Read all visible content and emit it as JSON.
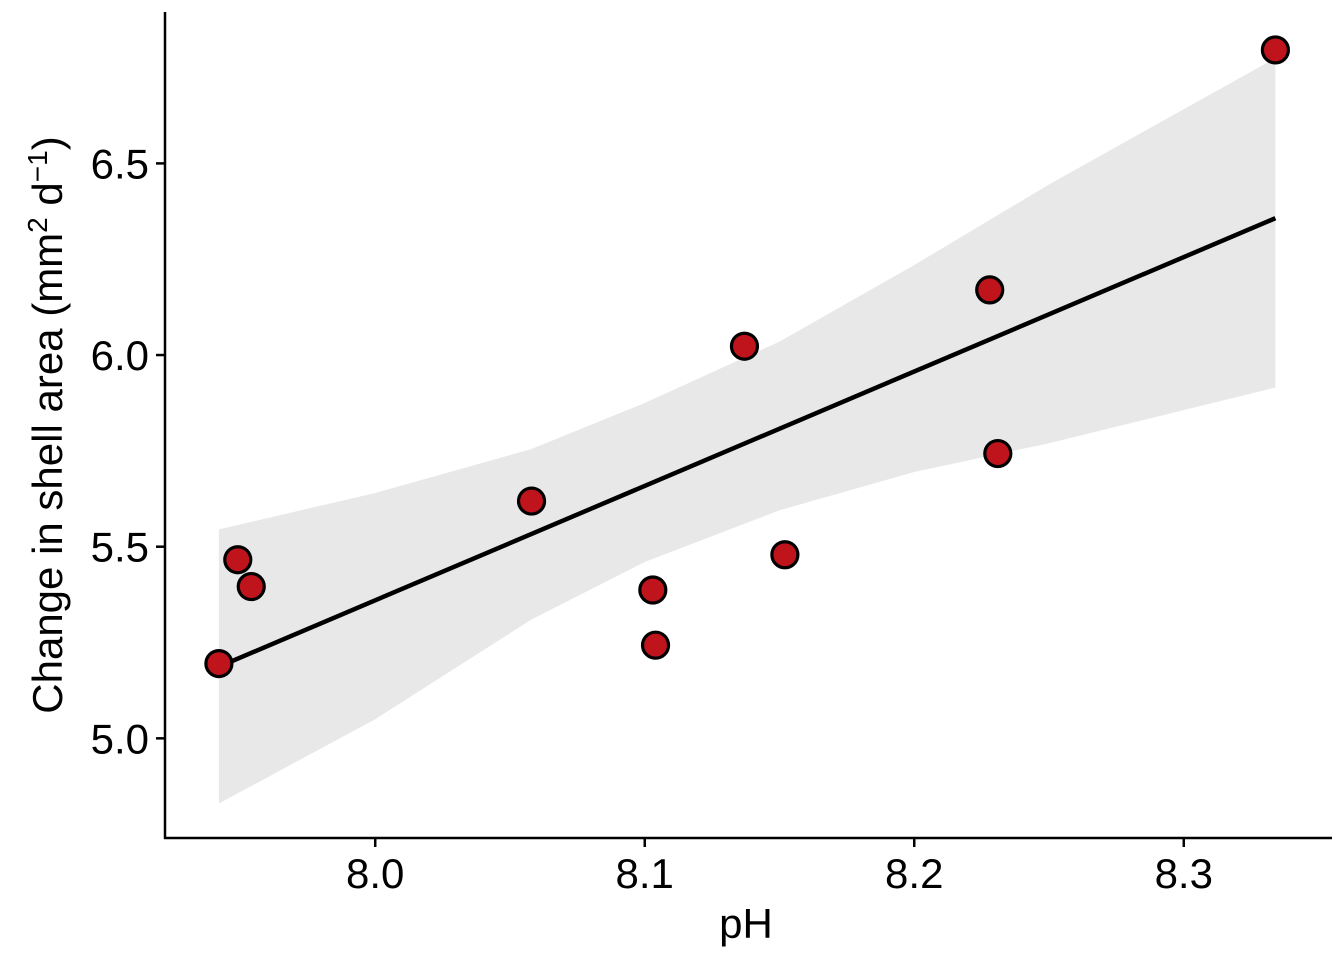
{
  "chart_data": {
    "type": "scatter",
    "title": "",
    "xlabel": "pH",
    "ylabel": {
      "text_main": "Change in shell area (mm",
      "sup1": "2",
      "text_mid": " d",
      "sup2": "−1",
      "text_end": ")"
    },
    "xlim": [
      7.922,
      8.355
    ],
    "ylim": [
      4.74,
      6.895
    ],
    "x_ticks": [
      8.0,
      8.1,
      8.2,
      8.3
    ],
    "x_tick_labels": [
      "8.0",
      "8.1",
      "8.2",
      "8.3"
    ],
    "y_ticks": [
      5.0,
      5.5,
      6.0,
      6.5
    ],
    "y_tick_labels": [
      "5.0",
      "5.5",
      "6.0",
      "6.5"
    ],
    "grid": false,
    "legend": "none",
    "points": [
      {
        "x": 7.942,
        "y": 5.195
      },
      {
        "x": 7.949,
        "y": 5.466
      },
      {
        "x": 7.954,
        "y": 5.396
      },
      {
        "x": 8.058,
        "y": 5.619
      },
      {
        "x": 8.103,
        "y": 5.387
      },
      {
        "x": 8.104,
        "y": 5.243
      },
      {
        "x": 8.137,
        "y": 6.023
      },
      {
        "x": 8.152,
        "y": 5.479
      },
      {
        "x": 8.228,
        "y": 6.17
      },
      {
        "x": 8.231,
        "y": 5.743
      },
      {
        "x": 8.334,
        "y": 6.796
      }
    ],
    "fit_line": {
      "x": [
        7.942,
        8.334
      ],
      "y": [
        5.187,
        6.357
      ]
    },
    "confidence_band": [
      {
        "x": 7.942,
        "lower": 4.83,
        "upper": 5.545
      },
      {
        "x": 8.0,
        "lower": 5.05,
        "upper": 5.64
      },
      {
        "x": 8.058,
        "lower": 5.31,
        "upper": 5.755
      },
      {
        "x": 8.1,
        "lower": 5.46,
        "upper": 5.875
      },
      {
        "x": 8.15,
        "lower": 5.595,
        "upper": 6.035
      },
      {
        "x": 8.2,
        "lower": 5.695,
        "upper": 6.235
      },
      {
        "x": 8.25,
        "lower": 5.77,
        "upper": 6.445
      },
      {
        "x": 8.334,
        "lower": 5.915,
        "upper": 6.775
      }
    ],
    "colors": {
      "point_fill": "#c0141c",
      "point_stroke": "#000000",
      "line": "#000000",
      "band": "#e8e8e8",
      "axis": "#000000"
    }
  }
}
